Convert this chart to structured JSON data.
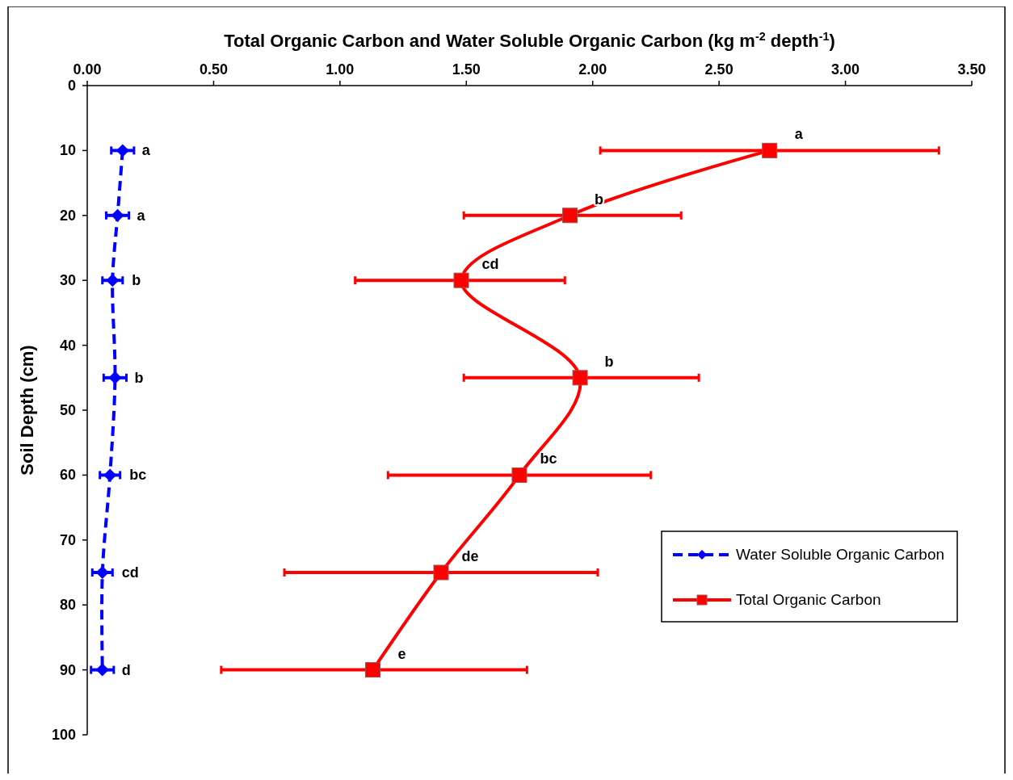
{
  "chart_data": {
    "type": "line",
    "xlabel": "Total Organic Carbon and Water Soluble Organic Carbon (kg m$^{-2}$ depth$^{-1}$)",
    "ylabel": "Soil Depth (cm)",
    "xlim": [
      0,
      3.5
    ],
    "xticks": [
      {
        "value": 0,
        "label": "0.00"
      },
      {
        "value": 0.5,
        "label": "0.50"
      },
      {
        "value": 1,
        "label": "1.00"
      },
      {
        "value": 1.5,
        "label": "1.50"
      },
      {
        "value": 2,
        "label": "2.00"
      },
      {
        "value": 2.5,
        "label": "2.50"
      },
      {
        "value": 3,
        "label": "3.00"
      },
      {
        "value": 3.5,
        "label": "3.50"
      }
    ],
    "ylim": [
      100,
      0
    ],
    "yticks": [
      0,
      10,
      20,
      30,
      40,
      50,
      60,
      70,
      80,
      90,
      100
    ],
    "grid": false,
    "legend": "bottom right",
    "series": [
      {
        "name": "Water Soluble Organic Carbon",
        "color": "#0000ff",
        "marker": "diamond",
        "line_style": "dashed",
        "x": [
          0.14,
          0.12,
          0.1,
          0.11,
          0.09,
          0.06,
          0.06
        ],
        "values": [
          10,
          20,
          30,
          45,
          60,
          75,
          90
        ],
        "xerrors": [
          0.045,
          0.045,
          0.04,
          0.045,
          0.04,
          0.04,
          0.045
        ]
      },
      {
        "name": "Total Organic Carbon",
        "color": "#ff0000",
        "marker": "square",
        "line_style": "solid",
        "x": [
          2.7,
          1.91,
          1.48,
          1.95,
          1.71,
          1.4,
          1.13
        ],
        "values": [
          10,
          20,
          30,
          45,
          60,
          75,
          90
        ],
        "xerrors": [
          [
            2.03,
            3.37
          ],
          [
            1.49,
            2.35
          ],
          [
            1.06,
            1.89
          ],
          [
            1.49,
            2.42
          ],
          [
            1.19,
            2.23
          ],
          [
            0.78,
            2.02
          ],
          [
            0.53,
            1.74
          ]
        ]
      }
    ],
    "annotations": [
      {
        "text": "a",
        "x": 0.14,
        "y": 10
      },
      {
        "text": "a",
        "x": 0.12,
        "y": 20
      },
      {
        "text": "b",
        "x": 0.1,
        "y": 30
      },
      {
        "text": "b",
        "x": 0.11,
        "y": 45
      },
      {
        "text": "bc",
        "x": 0.09,
        "y": 60
      },
      {
        "text": "cd",
        "x": 0.06,
        "y": 75
      },
      {
        "text": "d",
        "x": 0.06,
        "y": 90
      },
      {
        "text": "a",
        "x": 2.7,
        "y": 10
      },
      {
        "text": "b",
        "x": 1.91,
        "y": 20
      },
      {
        "text": "cd",
        "x": 1.48,
        "y": 30
      },
      {
        "text": "b",
        "x": 1.95,
        "y": 45
      },
      {
        "text": "bc",
        "x": 1.71,
        "y": 60
      },
      {
        "text": "de",
        "x": 1.4,
        "y": 75
      },
      {
        "text": "e",
        "x": 1.13,
        "y": 90
      }
    ]
  }
}
